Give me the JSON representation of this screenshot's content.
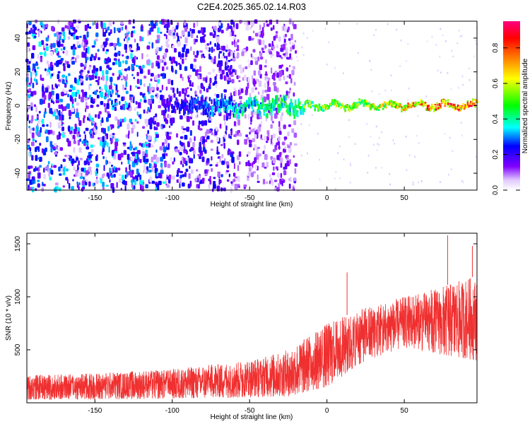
{
  "title": "C2E4.2025.365.02.14.R03",
  "chart_data": [
    {
      "type": "heatmap",
      "title": "C2E4.2025.365.02.14.R03",
      "xlabel": "Height of straight line (km)",
      "ylabel": "Frequency (Hz)",
      "xlim": [
        -194,
        97
      ],
      "ylim": [
        -50,
        50
      ],
      "xticks": [
        -150,
        -100,
        -50,
        0,
        50
      ],
      "yticks": [
        -40,
        -20,
        0,
        20,
        40
      ],
      "colorbar": {
        "label": "Normalized spectral amplitude",
        "range": [
          0.0,
          0.95
        ],
        "ticks": [
          0.0,
          0.2,
          0.4,
          0.6,
          0.8
        ],
        "colormap": [
          "#ffffff",
          "#e0c8ff",
          "#8000ff",
          "#0000ff",
          "#00ffff",
          "#00ff00",
          "#ffff00",
          "#ff8000",
          "#ff0000",
          "#ff0080"
        ]
      },
      "features": [
        {
          "label": "broadband noise",
          "x_range": [
            -194,
            -20
          ],
          "f_range": [
            -50,
            50
          ],
          "amplitude": 0.15
        },
        {
          "label": "carrier line",
          "x_range": [
            -107,
            97
          ],
          "f_center": 0,
          "amplitude_range": [
            0.2,
            0.95
          ]
        }
      ]
    },
    {
      "type": "line",
      "title": "",
      "xlabel": "Height of straight line (km)",
      "ylabel": "SNR (10 * v/v)",
      "xlim": [
        -194,
        97
      ],
      "ylim": [
        0,
        1600
      ],
      "xticks": [
        -150,
        -100,
        -50,
        0,
        50
      ],
      "yticks": [
        500,
        1000,
        1500
      ],
      "color": "#f03030",
      "envelope": {
        "x": [
          -194,
          -150,
          -100,
          -50,
          -25,
          0,
          25,
          50,
          75,
          97
        ],
        "low": [
          30,
          30,
          40,
          50,
          60,
          150,
          400,
          520,
          450,
          400
        ],
        "high": [
          260,
          280,
          320,
          400,
          500,
          750,
          900,
          1000,
          1100,
          1200
        ]
      },
      "spikes": [
        {
          "x": 13,
          "y": 1230
        },
        {
          "x": 78,
          "y": 1580
        },
        {
          "x": 94,
          "y": 1480
        }
      ]
    }
  ]
}
